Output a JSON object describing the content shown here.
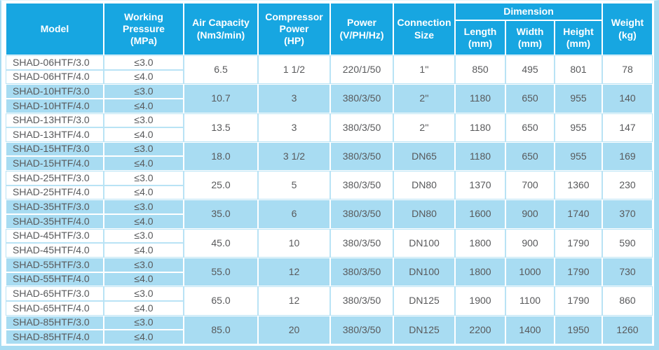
{
  "colors": {
    "header_bg": "#17a6e1",
    "header_text": "#ffffff",
    "row_alt_bg": "#a8dcf2",
    "body_text": "#58595b",
    "grid_on_white": "#b9e3f5"
  },
  "table": {
    "headers": {
      "model": "Model",
      "working_pressure": "Working\nPressure\n(MPa)",
      "air_capacity": "Air Capacity\n(Nm3/min)",
      "compressor_power": "Compressor\nPower\n(HP)",
      "power": "Power\n(V/PH/Hz)",
      "connection_size": "Connection\nSize",
      "dimension": "Dimension",
      "length": "Length\n(mm)",
      "width": "Width\n(mm)",
      "height": "Height\n(mm)",
      "weight": "Weight\n(kg)"
    },
    "groups": [
      {
        "models": [
          "SHAD-06HTF/3.0",
          "SHAD-06HTF/4.0"
        ],
        "pressures": [
          "≤3.0",
          "≤4.0"
        ],
        "air_capacity": "6.5",
        "compressor_power": "1 1/2",
        "power": "220/1/50",
        "connection_size": "1''",
        "length": "850",
        "width": "495",
        "height": "801",
        "weight": "78"
      },
      {
        "models": [
          "SHAD-10HTF/3.0",
          "SHAD-10HTF/4.0"
        ],
        "pressures": [
          "≤3.0",
          "≤4.0"
        ],
        "air_capacity": "10.7",
        "compressor_power": "3",
        "power": "380/3/50",
        "connection_size": "2''",
        "length": "1180",
        "width": "650",
        "height": "955",
        "weight": "140"
      },
      {
        "models": [
          "SHAD-13HTF/3.0",
          "SHAD-13HTF/4.0"
        ],
        "pressures": [
          "≤3.0",
          "≤4.0"
        ],
        "air_capacity": "13.5",
        "compressor_power": "3",
        "power": "380/3/50",
        "connection_size": "2''",
        "length": "1180",
        "width": "650",
        "height": "955",
        "weight": "147"
      },
      {
        "models": [
          "SHAD-15HTF/3.0",
          "SHAD-15HTF/4.0"
        ],
        "pressures": [
          "≤3.0",
          "≤4.0"
        ],
        "air_capacity": "18.0",
        "compressor_power": "3 1/2",
        "power": "380/3/50",
        "connection_size": "DN65",
        "length": "1180",
        "width": "650",
        "height": "955",
        "weight": "169"
      },
      {
        "models": [
          "SHAD-25HTF/3.0",
          "SHAD-25HTF/4.0"
        ],
        "pressures": [
          "≤3.0",
          "≤4.0"
        ],
        "air_capacity": "25.0",
        "compressor_power": "5",
        "power": "380/3/50",
        "connection_size": "DN80",
        "length": "1370",
        "width": "700",
        "height": "1360",
        "weight": "230"
      },
      {
        "models": [
          "SHAD-35HTF/3.0",
          "SHAD-35HTF/4.0"
        ],
        "pressures": [
          "≤3.0",
          "≤4.0"
        ],
        "air_capacity": "35.0",
        "compressor_power": "6",
        "power": "380/3/50",
        "connection_size": "DN80",
        "length": "1600",
        "width": "900",
        "height": "1740",
        "weight": "370"
      },
      {
        "models": [
          "SHAD-45HTF/3.0",
          "SHAD-45HTF/4.0"
        ],
        "pressures": [
          "≤3.0",
          "≤4.0"
        ],
        "air_capacity": "45.0",
        "compressor_power": "10",
        "power": "380/3/50",
        "connection_size": "DN100",
        "length": "1800",
        "width": "900",
        "height": "1790",
        "weight": "590"
      },
      {
        "models": [
          "SHAD-55HTF/3.0",
          "SHAD-55HTF/4.0"
        ],
        "pressures": [
          "≤3.0",
          "≤4.0"
        ],
        "air_capacity": "55.0",
        "compressor_power": "12",
        "power": "380/3/50",
        "connection_size": "DN100",
        "length": "1800",
        "width": "1000",
        "height": "1790",
        "weight": "730"
      },
      {
        "models": [
          "SHAD-65HTF/3.0",
          "SHAD-65HTF/4.0"
        ],
        "pressures": [
          "≤3.0",
          "≤4.0"
        ],
        "air_capacity": "65.0",
        "compressor_power": "12",
        "power": "380/3/50",
        "connection_size": "DN125",
        "length": "1900",
        "width": "1100",
        "height": "1790",
        "weight": "860"
      },
      {
        "models": [
          "SHAD-85HTF/3.0",
          "SHAD-85HTF/4.0"
        ],
        "pressures": [
          "≤3.0",
          "≤4.0"
        ],
        "air_capacity": "85.0",
        "compressor_power": "20",
        "power": "380/3/50",
        "connection_size": "DN125",
        "length": "2200",
        "width": "1400",
        "height": "1950",
        "weight": "1260"
      }
    ]
  }
}
